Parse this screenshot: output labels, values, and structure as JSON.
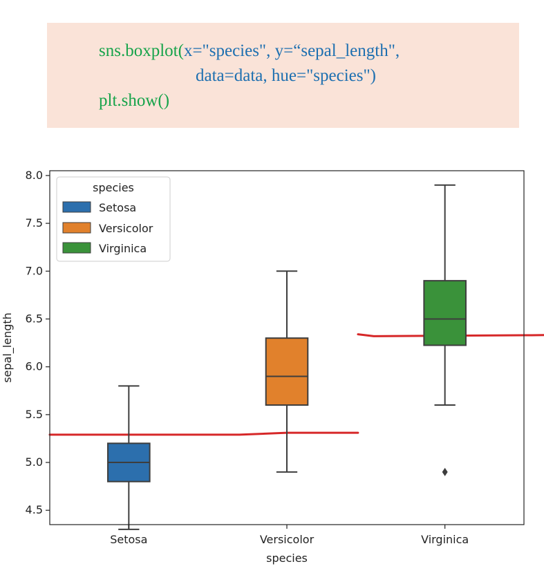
{
  "code": {
    "line1_fn": "sns.boxplot(",
    "line1_args": "x=\"species\", y=“sepal_length\",",
    "line2_args": "data=data, hue=\"species\")",
    "line3": "plt.show()"
  },
  "colors": {
    "setosa": "#2c6fad",
    "versicolor": "#e1812c",
    "virginica": "#3a923a",
    "box_edge": "#3d3d3d",
    "annotation_line": "#d62728"
  },
  "chart_data": {
    "type": "boxplot",
    "xlabel": "species",
    "ylabel": "sepal_length",
    "ylim": [
      4.35,
      8.05
    ],
    "yticks": [
      4.5,
      5.0,
      5.5,
      6.0,
      6.5,
      7.0,
      7.5,
      8.0
    ],
    "ytick_labels": [
      "4.5",
      "5.0",
      "5.5",
      "6.0",
      "6.5",
      "7.0",
      "7.5",
      "8.0"
    ],
    "categories": [
      "Setosa",
      "Versicolor",
      "Virginica"
    ],
    "legend": {
      "title": "species",
      "position": "upper-left",
      "entries": [
        "Setosa",
        "Versicolor",
        "Virginica"
      ]
    },
    "grid": false,
    "boxes": [
      {
        "name": "Setosa",
        "whisker_low": 4.3,
        "q1": 4.8,
        "median": 5.0,
        "q3": 5.2,
        "whisker_high": 5.8,
        "outliers": []
      },
      {
        "name": "Versicolor",
        "whisker_low": 4.9,
        "q1": 5.6,
        "median": 5.9,
        "q3": 6.3,
        "whisker_high": 7.0,
        "outliers": []
      },
      {
        "name": "Virginica",
        "whisker_low": 5.6,
        "q1": 6.225,
        "median": 6.5,
        "q3": 6.9,
        "whisker_high": 7.9,
        "outliers": [
          4.9
        ]
      }
    ],
    "annotation_lines": [
      {
        "x": [
          -0.5,
          0.7,
          1.0,
          1.45
        ],
        "y": [
          5.29,
          5.29,
          5.31,
          5.31
        ]
      },
      {
        "x": [
          1.45,
          1.55,
          2.5,
          2.55,
          3.0
        ],
        "y": [
          6.34,
          6.32,
          6.33,
          6.33,
          6.34
        ]
      }
    ]
  }
}
